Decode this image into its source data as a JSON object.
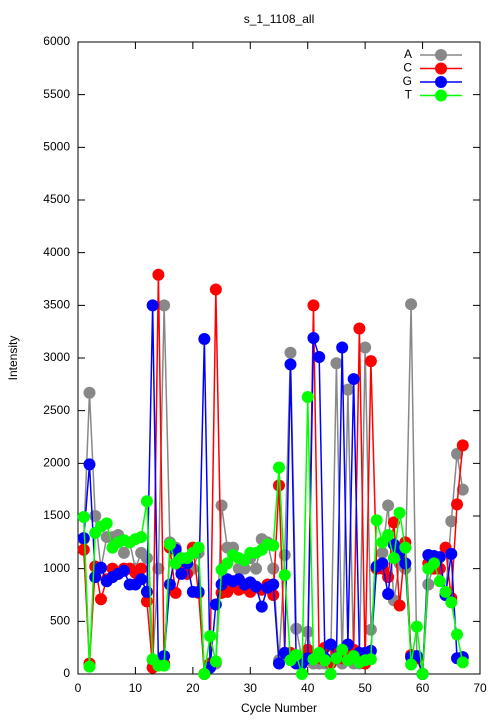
{
  "chart_data": {
    "type": "line",
    "title": "s_1_1108_all",
    "x_label": "Cycle Number",
    "y_label": "Intensity",
    "x": [
      1,
      2,
      3,
      4,
      5,
      6,
      7,
      8,
      9,
      10,
      11,
      12,
      13,
      14,
      15,
      16,
      17,
      18,
      19,
      20,
      21,
      22,
      23,
      24,
      25,
      26,
      27,
      28,
      29,
      30,
      31,
      32,
      33,
      34,
      35,
      36,
      37,
      38,
      39,
      40,
      41,
      42,
      43,
      44,
      45,
      46,
      47,
      48,
      49,
      50,
      51,
      52,
      53,
      54,
      55,
      56,
      57,
      58,
      59,
      60,
      61,
      62,
      63,
      64,
      65,
      66,
      67
    ],
    "series": [
      {
        "name": "A",
        "color": "#888888",
        "values": [
          1280,
          2670,
          1500,
          1000,
          1300,
          1300,
          1320,
          1150,
          1250,
          1000,
          1150,
          1100,
          130,
          1000,
          3500,
          1250,
          1200,
          1000,
          1050,
          1000,
          1150,
          0,
          100,
          100,
          1600,
          1200,
          1200,
          1000,
          1000,
          1100,
          1000,
          1280,
          1250,
          1000,
          130,
          1130,
          3050,
          430,
          150,
          400,
          100,
          100,
          100,
          100,
          2950,
          100,
          2700,
          100,
          100,
          3100,
          420,
          1000,
          1150,
          1600,
          700,
          1050,
          1000,
          3510,
          150,
          0,
          850,
          1050,
          1000,
          750,
          1450,
          2090,
          1750
        ]
      },
      {
        "name": "C",
        "color": "#ff0000",
        "values": [
          1180,
          100,
          1020,
          710,
          900,
          1000,
          950,
          1000,
          1000,
          960,
          1000,
          690,
          60,
          3790,
          100,
          1200,
          770,
          1000,
          950,
          1200,
          770,
          0,
          100,
          3650,
          770,
          780,
          850,
          800,
          820,
          780,
          820,
          800,
          850,
          750,
          1790,
          200,
          200,
          100,
          100,
          230,
          3500,
          150,
          250,
          100,
          200,
          150,
          200,
          230,
          3280,
          100,
          2970,
          1000,
          1000,
          920,
          1440,
          650,
          1250,
          180,
          150,
          0,
          1050,
          1000,
          1000,
          1200,
          720,
          1610,
          2170
        ]
      },
      {
        "name": "G",
        "color": "#0000ff",
        "values": [
          1290,
          1990,
          920,
          1010,
          880,
          920,
          950,
          980,
          850,
          850,
          900,
          780,
          3500,
          100,
          170,
          850,
          1180,
          950,
          1050,
          780,
          780,
          3180,
          60,
          660,
          850,
          900,
          880,
          900,
          850,
          870,
          830,
          640,
          820,
          850,
          100,
          200,
          2940,
          100,
          100,
          150,
          3190,
          3010,
          150,
          280,
          150,
          3100,
          280,
          2800,
          200,
          200,
          220,
          1020,
          1050,
          760,
          1230,
          1150,
          1050,
          160,
          170,
          0,
          1130,
          1120,
          1110,
          750,
          1140,
          150,
          160
        ]
      },
      {
        "name": "T",
        "color": "#00ff00",
        "values": [
          1490,
          70,
          1340,
          1400,
          1430,
          1200,
          1250,
          1270,
          1250,
          1280,
          1300,
          1640,
          140,
          80,
          80,
          1230,
          1050,
          1100,
          1100,
          1150,
          1200,
          0,
          360,
          120,
          990,
          1050,
          1130,
          1100,
          1080,
          1150,
          1150,
          1180,
          1230,
          1220,
          1960,
          940,
          130,
          180,
          0,
          2630,
          140,
          200,
          130,
          0,
          150,
          230,
          130,
          170,
          110,
          130,
          140,
          1460,
          1250,
          1320,
          1100,
          1530,
          1200,
          90,
          450,
          0,
          1000,
          1050,
          880,
          780,
          680,
          375,
          110
        ]
      }
    ],
    "xlim": [
      0,
      70
    ],
    "xticks": [
      0,
      10,
      20,
      30,
      40,
      50,
      60,
      70
    ],
    "ylim": [
      0,
      6000
    ],
    "yticks": [
      0,
      500,
      1000,
      1500,
      2000,
      2500,
      3000,
      3500,
      4000,
      4500,
      5000,
      5500,
      6000
    ],
    "legend": "top-right"
  }
}
